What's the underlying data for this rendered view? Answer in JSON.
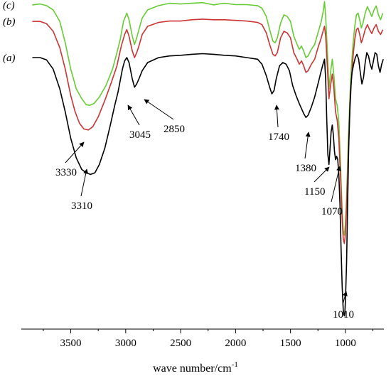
{
  "chart_data": {
    "type": "line",
    "title": "",
    "xlabel": "wave number/cm",
    "xlabel_sup": "-1",
    "ylabel": "",
    "xlim": [
      3950,
      650
    ],
    "x_reversed": true,
    "ylim": [
      0,
      100
    ],
    "grid": false,
    "x_ticks": [
      3500,
      3000,
      2500,
      2000,
      1500,
      1000
    ],
    "x_tick_labels": [
      "3500",
      "3000",
      "2500",
      "2000",
      "1500",
      "1000"
    ],
    "series": [
      {
        "name": "(c)",
        "color": "#66cc33",
        "points": [
          [
            3850,
            98.5
          ],
          [
            3780,
            98.8
          ],
          [
            3720,
            98.3
          ],
          [
            3660,
            97.0
          ],
          [
            3600,
            93.5
          ],
          [
            3550,
            87.0
          ],
          [
            3500,
            79.0
          ],
          [
            3450,
            73.0
          ],
          [
            3400,
            70.0
          ],
          [
            3360,
            68.2
          ],
          [
            3330,
            68.0
          ],
          [
            3290,
            68.5
          ],
          [
            3240,
            70.5
          ],
          [
            3180,
            74.0
          ],
          [
            3120,
            79.0
          ],
          [
            3080,
            84.0
          ],
          [
            3050,
            88.0
          ],
          [
            3020,
            93.5
          ],
          [
            2990,
            96.0
          ],
          [
            2970,
            94.0
          ],
          [
            2940,
            89.0
          ],
          [
            2920,
            86.5
          ],
          [
            2900,
            88.5
          ],
          [
            2880,
            91.0
          ],
          [
            2850,
            94.5
          ],
          [
            2800,
            97.0
          ],
          [
            2700,
            98.3
          ],
          [
            2600,
            99.0
          ],
          [
            2500,
            98.8
          ],
          [
            2400,
            99.0
          ],
          [
            2300,
            99.2
          ],
          [
            2200,
            98.5
          ],
          [
            2150,
            98.8
          ],
          [
            2100,
            99.0
          ],
          [
            2000,
            98.6
          ],
          [
            1900,
            98.6
          ],
          [
            1800,
            98.3
          ],
          [
            1760,
            97.5
          ],
          [
            1720,
            95.0
          ],
          [
            1690,
            91.0
          ],
          [
            1660,
            87.5
          ],
          [
            1640,
            87.0
          ],
          [
            1620,
            88.5
          ],
          [
            1590,
            93.0
          ],
          [
            1560,
            95.5
          ],
          [
            1530,
            95.0
          ],
          [
            1500,
            93.5
          ],
          [
            1470,
            89.0
          ],
          [
            1440,
            86.5
          ],
          [
            1420,
            85.0
          ],
          [
            1400,
            86.0
          ],
          [
            1380,
            84.5
          ],
          [
            1360,
            82.5
          ],
          [
            1340,
            83.0
          ],
          [
            1310,
            85.0
          ],
          [
            1280,
            86.5
          ],
          [
            1250,
            90.0
          ],
          [
            1220,
            93.5
          ],
          [
            1200,
            97.0
          ],
          [
            1190,
            99.5
          ],
          [
            1180,
            95.0
          ],
          [
            1165,
            85.0
          ],
          [
            1150,
            73.0
          ],
          [
            1135,
            78.0
          ],
          [
            1120,
            82.0
          ],
          [
            1105,
            77.0
          ],
          [
            1090,
            70.0
          ],
          [
            1075,
            68.0
          ],
          [
            1060,
            63.0
          ],
          [
            1045,
            50.0
          ],
          [
            1030,
            36.0
          ],
          [
            1020,
            30.0
          ],
          [
            1010,
            28.5
          ],
          [
            1000,
            32.0
          ],
          [
            990,
            40.0
          ],
          [
            975,
            56.0
          ],
          [
            960,
            70.0
          ],
          [
            945,
            80.0
          ],
          [
            930,
            87.0
          ],
          [
            915,
            92.0
          ],
          [
            900,
            95.5
          ],
          [
            885,
            96.0
          ],
          [
            870,
            94.0
          ],
          [
            855,
            91.5
          ],
          [
            840,
            93.0
          ],
          [
            820,
            96.0
          ],
          [
            800,
            98.0
          ],
          [
            780,
            96.5
          ],
          [
            760,
            95.0
          ],
          [
            740,
            97.0
          ],
          [
            720,
            98.2
          ],
          [
            700,
            95.5
          ],
          [
            680,
            94.0
          ],
          [
            660,
            96.0
          ]
        ]
      },
      {
        "name": "(b)",
        "color": "#cc3333",
        "points": [
          [
            3850,
            93.5
          ],
          [
            3780,
            93.5
          ],
          [
            3720,
            92.8
          ],
          [
            3660,
            90.5
          ],
          [
            3600,
            85.5
          ],
          [
            3550,
            79.0
          ],
          [
            3500,
            71.0
          ],
          [
            3460,
            66.0
          ],
          [
            3420,
            62.5
          ],
          [
            3380,
            60.8
          ],
          [
            3340,
            60.5
          ],
          [
            3300,
            61.5
          ],
          [
            3250,
            64.5
          ],
          [
            3190,
            69.5
          ],
          [
            3130,
            75.0
          ],
          [
            3080,
            80.0
          ],
          [
            3060,
            83.0
          ],
          [
            3040,
            86.0
          ],
          [
            3010,
            89.5
          ],
          [
            2990,
            91.0
          ],
          [
            2970,
            89.0
          ],
          [
            2940,
            84.5
          ],
          [
            2920,
            82.5
          ],
          [
            2900,
            84.0
          ],
          [
            2880,
            86.0
          ],
          [
            2850,
            89.5
          ],
          [
            2800,
            92.0
          ],
          [
            2700,
            93.2
          ],
          [
            2600,
            93.6
          ],
          [
            2500,
            93.6
          ],
          [
            2400,
            94.0
          ],
          [
            2300,
            94.2
          ],
          [
            2200,
            94.0
          ],
          [
            2100,
            94.0
          ],
          [
            2000,
            93.8
          ],
          [
            1900,
            93.6
          ],
          [
            1800,
            93.2
          ],
          [
            1760,
            92.5
          ],
          [
            1720,
            90.0
          ],
          [
            1690,
            86.5
          ],
          [
            1660,
            83.5
          ],
          [
            1640,
            83.0
          ],
          [
            1620,
            84.0
          ],
          [
            1590,
            88.5
          ],
          [
            1560,
            90.5
          ],
          [
            1530,
            90.0
          ],
          [
            1500,
            88.5
          ],
          [
            1470,
            84.0
          ],
          [
            1440,
            82.0
          ],
          [
            1420,
            80.5
          ],
          [
            1400,
            81.5
          ],
          [
            1380,
            80.0
          ],
          [
            1360,
            78.0
          ],
          [
            1340,
            78.5
          ],
          [
            1310,
            80.5
          ],
          [
            1280,
            82.0
          ],
          [
            1250,
            85.5
          ],
          [
            1220,
            88.5
          ],
          [
            1200,
            91.0
          ],
          [
            1190,
            92.0
          ],
          [
            1180,
            89.0
          ],
          [
            1165,
            80.0
          ],
          [
            1150,
            70.0
          ],
          [
            1135,
            74.0
          ],
          [
            1120,
            77.5
          ],
          [
            1105,
            73.0
          ],
          [
            1090,
            66.0
          ],
          [
            1075,
            63.5
          ],
          [
            1060,
            58.0
          ],
          [
            1045,
            46.0
          ],
          [
            1030,
            33.5
          ],
          [
            1020,
            27.5
          ],
          [
            1010,
            26.0
          ],
          [
            1000,
            29.0
          ],
          [
            990,
            37.0
          ],
          [
            975,
            52.0
          ],
          [
            960,
            66.0
          ],
          [
            945,
            76.0
          ],
          [
            930,
            83.0
          ],
          [
            915,
            88.0
          ],
          [
            900,
            91.0
          ],
          [
            885,
            91.5
          ],
          [
            870,
            89.5
          ],
          [
            855,
            87.0
          ],
          [
            840,
            88.5
          ],
          [
            820,
            91.0
          ],
          [
            800,
            92.5
          ],
          [
            780,
            91.0
          ],
          [
            760,
            89.8
          ],
          [
            740,
            91.5
          ],
          [
            720,
            92.5
          ],
          [
            700,
            90.5
          ],
          [
            680,
            89.5
          ],
          [
            660,
            91.0
          ]
        ]
      },
      {
        "name": "(a)",
        "color": "#000000",
        "points": [
          [
            3850,
            82.5
          ],
          [
            3780,
            82.5
          ],
          [
            3720,
            81.8
          ],
          [
            3660,
            79.0
          ],
          [
            3600,
            73.0
          ],
          [
            3550,
            66.0
          ],
          [
            3500,
            58.0
          ],
          [
            3450,
            52.0
          ],
          [
            3400,
            48.5
          ],
          [
            3360,
            47.5
          ],
          [
            3320,
            47.0
          ],
          [
            3280,
            47.5
          ],
          [
            3240,
            50.0
          ],
          [
            3190,
            55.0
          ],
          [
            3140,
            62.0
          ],
          [
            3100,
            68.0
          ],
          [
            3070,
            72.0
          ],
          [
            3050,
            75.5
          ],
          [
            3030,
            79.0
          ],
          [
            3010,
            81.5
          ],
          [
            2990,
            82.5
          ],
          [
            2970,
            81.0
          ],
          [
            2940,
            76.0
          ],
          [
            2920,
            73.5
          ],
          [
            2900,
            74.5
          ],
          [
            2880,
            76.0
          ],
          [
            2850,
            78.5
          ],
          [
            2800,
            81.0
          ],
          [
            2700,
            82.5
          ],
          [
            2600,
            83.0
          ],
          [
            2500,
            83.2
          ],
          [
            2400,
            83.5
          ],
          [
            2300,
            83.7
          ],
          [
            2200,
            83.5
          ],
          [
            2100,
            83.2
          ],
          [
            2000,
            83.0
          ],
          [
            1900,
            82.5
          ],
          [
            1800,
            82.0
          ],
          [
            1760,
            80.5
          ],
          [
            1720,
            77.0
          ],
          [
            1690,
            73.5
          ],
          [
            1670,
            71.5
          ],
          [
            1650,
            72.5
          ],
          [
            1630,
            76.0
          ],
          [
            1600,
            80.0
          ],
          [
            1570,
            81.0
          ],
          [
            1540,
            80.5
          ],
          [
            1510,
            78.5
          ],
          [
            1480,
            74.0
          ],
          [
            1450,
            71.0
          ],
          [
            1420,
            68.5
          ],
          [
            1400,
            67.0
          ],
          [
            1380,
            65.5
          ],
          [
            1360,
            64.3
          ],
          [
            1340,
            65.0
          ],
          [
            1310,
            67.5
          ],
          [
            1280,
            70.5
          ],
          [
            1250,
            74.5
          ],
          [
            1220,
            78.5
          ],
          [
            1200,
            81.0
          ],
          [
            1190,
            82.0
          ],
          [
            1180,
            76.0
          ],
          [
            1170,
            64.0
          ],
          [
            1160,
            53.0
          ],
          [
            1150,
            50.0
          ],
          [
            1140,
            55.0
          ],
          [
            1130,
            60.0
          ],
          [
            1120,
            62.0
          ],
          [
            1110,
            59.0
          ],
          [
            1100,
            54.0
          ],
          [
            1090,
            51.5
          ],
          [
            1080,
            52.5
          ],
          [
            1070,
            51.5
          ],
          [
            1060,
            47.0
          ],
          [
            1050,
            38.0
          ],
          [
            1040,
            25.0
          ],
          [
            1030,
            13.0
          ],
          [
            1020,
            6.0
          ],
          [
            1015,
            4.5
          ],
          [
            1010,
            4.0
          ],
          [
            1005,
            5.0
          ],
          [
            1000,
            8.5
          ],
          [
            990,
            20.0
          ],
          [
            980,
            38.0
          ],
          [
            970,
            55.0
          ],
          [
            960,
            67.0
          ],
          [
            950,
            74.0
          ],
          [
            940,
            78.0
          ],
          [
            925,
            80.5
          ],
          [
            910,
            82.5
          ],
          [
            895,
            83.5
          ],
          [
            880,
            82.0
          ],
          [
            865,
            78.0
          ],
          [
            850,
            74.5
          ],
          [
            835,
            76.5
          ],
          [
            820,
            81.0
          ],
          [
            805,
            84.0
          ],
          [
            790,
            83.0
          ],
          [
            775,
            80.5
          ],
          [
            760,
            79.0
          ],
          [
            745,
            81.5
          ],
          [
            730,
            84.0
          ],
          [
            715,
            83.5
          ],
          [
            700,
            80.0
          ],
          [
            685,
            78.0
          ],
          [
            670,
            80.5
          ],
          [
            655,
            82.0
          ]
        ]
      }
    ],
    "annotations": [
      {
        "text": "3330",
        "x": 3330,
        "y": 60.5
      },
      {
        "text": "3310",
        "x": 3310,
        "y": 47.0
      },
      {
        "text": "3045",
        "x": 3045,
        "y": 75.5
      },
      {
        "text": "2850",
        "x": 2850,
        "y": 78.5
      },
      {
        "text": "1740",
        "x": 1670,
        "y": 71.5
      },
      {
        "text": "1380",
        "x": 1355,
        "y": 64.3
      },
      {
        "text": "1150",
        "x": 1150,
        "y": 50.0
      },
      {
        "text": "1070",
        "x": 1070,
        "y": 51.5
      },
      {
        "text": "1010",
        "x": 1010,
        "y": 4.0
      }
    ]
  }
}
